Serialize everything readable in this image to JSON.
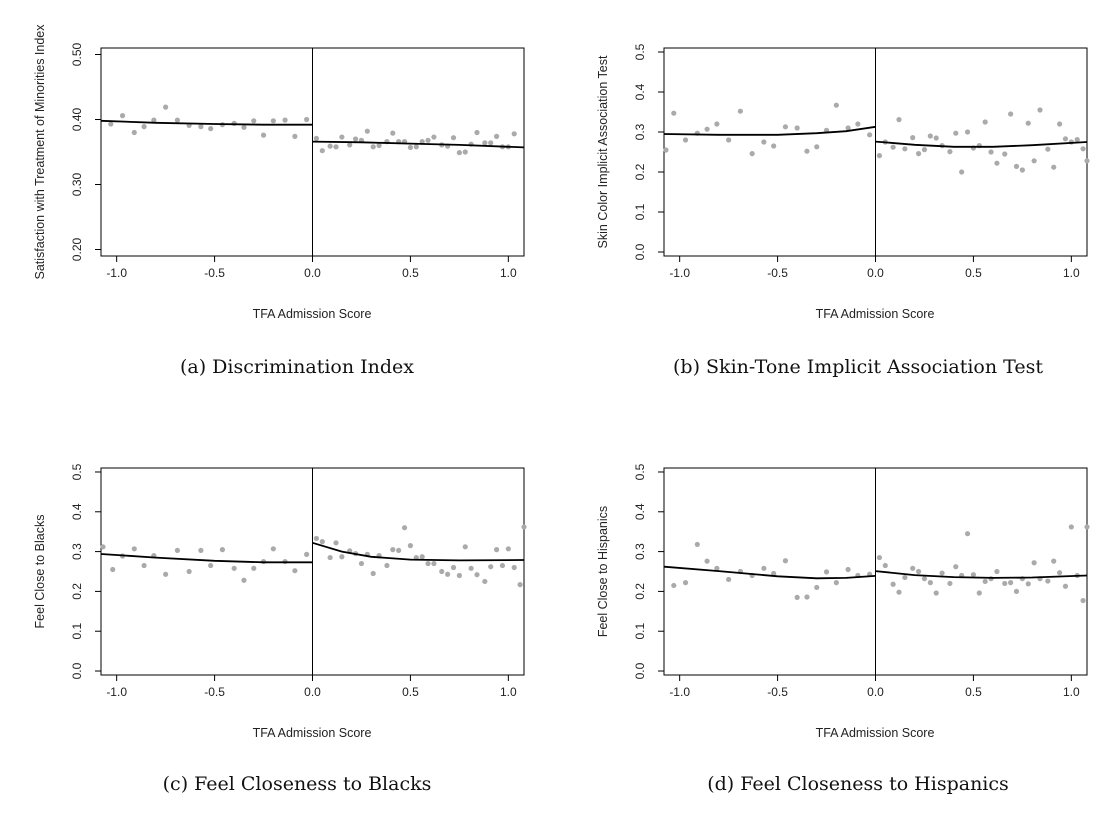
{
  "chart_data": [
    {
      "type": "scatter",
      "caption": "(a) Discrimination Index",
      "xlabel": "TFA Admission Score",
      "ylabel": "Satisfaction with Treatment of Minorities Index",
      "xlim": [
        -1.08,
        1.08
      ],
      "ylim": [
        0.19,
        0.51
      ],
      "xticks": [
        "-1.0",
        "-0.5",
        "0.0",
        "0.5",
        "1.0"
      ],
      "yticks": [
        "0.20",
        "0.30",
        "0.40",
        "0.50"
      ],
      "cutoff": 0.0,
      "points": [
        [
          -1.03,
          0.393
        ],
        [
          -0.97,
          0.406
        ],
        [
          -0.91,
          0.38
        ],
        [
          -0.86,
          0.389
        ],
        [
          -0.81,
          0.399
        ],
        [
          -0.75,
          0.419
        ],
        [
          -0.69,
          0.399
        ],
        [
          -0.63,
          0.391
        ],
        [
          -0.57,
          0.389
        ],
        [
          -0.52,
          0.386
        ],
        [
          -0.46,
          0.392
        ],
        [
          -0.4,
          0.394
        ],
        [
          -0.35,
          0.388
        ],
        [
          -0.3,
          0.398
        ],
        [
          -0.25,
          0.376
        ],
        [
          -0.2,
          0.398
        ],
        [
          -0.14,
          0.399
        ],
        [
          -0.09,
          0.374
        ],
        [
          -0.03,
          0.4
        ],
        [
          0.02,
          0.371
        ],
        [
          0.05,
          0.352
        ],
        [
          0.09,
          0.359
        ],
        [
          0.12,
          0.358
        ],
        [
          0.15,
          0.373
        ],
        [
          0.19,
          0.361
        ],
        [
          0.22,
          0.37
        ],
        [
          0.25,
          0.368
        ],
        [
          0.28,
          0.382
        ],
        [
          0.31,
          0.358
        ],
        [
          0.34,
          0.36
        ],
        [
          0.38,
          0.366
        ],
        [
          0.41,
          0.379
        ],
        [
          0.44,
          0.366
        ],
        [
          0.47,
          0.366
        ],
        [
          0.5,
          0.357
        ],
        [
          0.53,
          0.358
        ],
        [
          0.56,
          0.366
        ],
        [
          0.59,
          0.368
        ],
        [
          0.62,
          0.373
        ],
        [
          0.66,
          0.361
        ],
        [
          0.69,
          0.359
        ],
        [
          0.72,
          0.372
        ],
        [
          0.75,
          0.349
        ],
        [
          0.78,
          0.35
        ],
        [
          0.81,
          0.362
        ],
        [
          0.84,
          0.38
        ],
        [
          0.88,
          0.364
        ],
        [
          0.91,
          0.364
        ],
        [
          0.94,
          0.374
        ],
        [
          0.97,
          0.358
        ],
        [
          1.0,
          0.358
        ],
        [
          1.03,
          0.378
        ]
      ],
      "fit_left": [
        [
          -1.08,
          0.398
        ],
        [
          -0.8,
          0.395
        ],
        [
          -0.5,
          0.393
        ],
        [
          -0.25,
          0.392
        ],
        [
          0.0,
          0.392
        ]
      ],
      "fit_right": [
        [
          0.0,
          0.366
        ],
        [
          0.25,
          0.365
        ],
        [
          0.5,
          0.363
        ],
        [
          0.75,
          0.361
        ],
        [
          1.08,
          0.357
        ]
      ]
    },
    {
      "type": "scatter",
      "caption": "(b) Skin-Tone Implicit Association Test",
      "xlabel": "TFA Admission Score",
      "ylabel": "Skin Color Implicit Association Test",
      "xlim": [
        -1.08,
        1.08
      ],
      "ylim": [
        -0.01,
        0.51
      ],
      "xticks": [
        "-1.0",
        "-0.5",
        "0.0",
        "0.5",
        "1.0"
      ],
      "yticks": [
        "0.0",
        "0.1",
        "0.2",
        "0.3",
        "0.4",
        "0.5"
      ],
      "cutoff": 0.0,
      "points": [
        [
          -1.07,
          0.255
        ],
        [
          -1.03,
          0.347
        ],
        [
          -0.97,
          0.28
        ],
        [
          -0.91,
          0.297
        ],
        [
          -0.86,
          0.307
        ],
        [
          -0.81,
          0.32
        ],
        [
          -0.75,
          0.28
        ],
        [
          -0.69,
          0.352
        ],
        [
          -0.63,
          0.246
        ],
        [
          -0.57,
          0.275
        ],
        [
          -0.52,
          0.265
        ],
        [
          -0.46,
          0.313
        ],
        [
          -0.4,
          0.31
        ],
        [
          -0.35,
          0.252
        ],
        [
          -0.3,
          0.263
        ],
        [
          -0.25,
          0.304
        ],
        [
          -0.2,
          0.367
        ],
        [
          -0.14,
          0.31
        ],
        [
          -0.09,
          0.32
        ],
        [
          -0.03,
          0.293
        ],
        [
          0.02,
          0.241
        ],
        [
          0.05,
          0.275
        ],
        [
          0.09,
          0.262
        ],
        [
          0.12,
          0.331
        ],
        [
          0.15,
          0.258
        ],
        [
          0.19,
          0.286
        ],
        [
          0.22,
          0.246
        ],
        [
          0.25,
          0.256
        ],
        [
          0.28,
          0.29
        ],
        [
          0.31,
          0.285
        ],
        [
          0.34,
          0.266
        ],
        [
          0.38,
          0.251
        ],
        [
          0.41,
          0.297
        ],
        [
          0.44,
          0.2
        ],
        [
          0.47,
          0.3
        ],
        [
          0.5,
          0.26
        ],
        [
          0.53,
          0.266
        ],
        [
          0.56,
          0.325
        ],
        [
          0.59,
          0.25
        ],
        [
          0.62,
          0.222
        ],
        [
          0.66,
          0.245
        ],
        [
          0.69,
          0.345
        ],
        [
          0.72,
          0.214
        ],
        [
          0.75,
          0.205
        ],
        [
          0.78,
          0.322
        ],
        [
          0.81,
          0.228
        ],
        [
          0.84,
          0.355
        ],
        [
          0.88,
          0.257
        ],
        [
          0.91,
          0.212
        ],
        [
          0.94,
          0.32
        ],
        [
          0.97,
          0.283
        ],
        [
          1.0,
          0.275
        ],
        [
          1.03,
          0.281
        ],
        [
          1.06,
          0.258
        ],
        [
          1.08,
          0.228
        ]
      ],
      "fit_left": [
        [
          -1.08,
          0.295
        ],
        [
          -0.8,
          0.293
        ],
        [
          -0.5,
          0.293
        ],
        [
          -0.3,
          0.297
        ],
        [
          -0.15,
          0.302
        ],
        [
          0.0,
          0.313
        ]
      ],
      "fit_right": [
        [
          0.0,
          0.276
        ],
        [
          0.2,
          0.268
        ],
        [
          0.4,
          0.263
        ],
        [
          0.6,
          0.263
        ],
        [
          0.8,
          0.267
        ],
        [
          1.08,
          0.275
        ]
      ]
    },
    {
      "type": "scatter",
      "caption": "(c) Feel Closeness to Blacks",
      "xlabel": "TFA Admission Score",
      "ylabel": "Feel Close to Blacks",
      "xlim": [
        -1.08,
        1.08
      ],
      "ylim": [
        -0.01,
        0.51
      ],
      "xticks": [
        "-1.0",
        "-0.5",
        "0.0",
        "0.5",
        "1.0"
      ],
      "yticks": [
        "0.0",
        "0.1",
        "0.2",
        "0.3",
        "0.4",
        "0.5"
      ],
      "cutoff": 0.0,
      "points": [
        [
          -1.07,
          0.312
        ],
        [
          -1.02,
          0.255
        ],
        [
          -0.97,
          0.289
        ],
        [
          -0.91,
          0.307
        ],
        [
          -0.86,
          0.265
        ],
        [
          -0.81,
          0.29
        ],
        [
          -0.75,
          0.243
        ],
        [
          -0.69,
          0.303
        ],
        [
          -0.63,
          0.25
        ],
        [
          -0.57,
          0.303
        ],
        [
          -0.52,
          0.265
        ],
        [
          -0.46,
          0.305
        ],
        [
          -0.4,
          0.258
        ],
        [
          -0.35,
          0.228
        ],
        [
          -0.3,
          0.258
        ],
        [
          -0.25,
          0.275
        ],
        [
          -0.2,
          0.307
        ],
        [
          -0.14,
          0.275
        ],
        [
          -0.09,
          0.252
        ],
        [
          -0.03,
          0.293
        ],
        [
          0.02,
          0.333
        ],
        [
          0.05,
          0.325
        ],
        [
          0.09,
          0.285
        ],
        [
          0.12,
          0.322
        ],
        [
          0.15,
          0.287
        ],
        [
          0.19,
          0.302
        ],
        [
          0.22,
          0.295
        ],
        [
          0.25,
          0.27
        ],
        [
          0.28,
          0.293
        ],
        [
          0.31,
          0.245
        ],
        [
          0.34,
          0.29
        ],
        [
          0.38,
          0.265
        ],
        [
          0.41,
          0.305
        ],
        [
          0.44,
          0.303
        ],
        [
          0.47,
          0.36
        ],
        [
          0.5,
          0.315
        ],
        [
          0.53,
          0.285
        ],
        [
          0.56,
          0.287
        ],
        [
          0.59,
          0.27
        ],
        [
          0.62,
          0.27
        ],
        [
          0.66,
          0.25
        ],
        [
          0.69,
          0.243
        ],
        [
          0.72,
          0.26
        ],
        [
          0.75,
          0.24
        ],
        [
          0.78,
          0.312
        ],
        [
          0.81,
          0.258
        ],
        [
          0.84,
          0.242
        ],
        [
          0.88,
          0.225
        ],
        [
          0.91,
          0.262
        ],
        [
          0.94,
          0.305
        ],
        [
          0.97,
          0.265
        ],
        [
          1.0,
          0.307
        ],
        [
          1.03,
          0.26
        ],
        [
          1.06,
          0.217
        ],
        [
          1.08,
          0.362
        ]
      ],
      "fit_left": [
        [
          -1.08,
          0.294
        ],
        [
          -0.8,
          0.285
        ],
        [
          -0.5,
          0.277
        ],
        [
          -0.25,
          0.273
        ],
        [
          0.0,
          0.273
        ]
      ],
      "fit_right": [
        [
          0.0,
          0.322
        ],
        [
          0.15,
          0.3
        ],
        [
          0.3,
          0.287
        ],
        [
          0.5,
          0.28
        ],
        [
          0.75,
          0.278
        ],
        [
          1.08,
          0.279
        ]
      ]
    },
    {
      "type": "scatter",
      "caption": "(d) Feel Closeness to Hispanics",
      "xlabel": "TFA Admission Score",
      "ylabel": "Feel Close to Hispanics",
      "xlim": [
        -1.08,
        1.08
      ],
      "ylim": [
        -0.01,
        0.51
      ],
      "xticks": [
        "-1.0",
        "-0.5",
        "0.0",
        "0.5",
        "1.0"
      ],
      "yticks": [
        "0.0",
        "0.1",
        "0.2",
        "0.3",
        "0.4",
        "0.5"
      ],
      "cutoff": 0.0,
      "points": [
        [
          -1.03,
          0.215
        ],
        [
          -0.97,
          0.222
        ],
        [
          -0.91,
          0.318
        ],
        [
          -0.86,
          0.276
        ],
        [
          -0.81,
          0.258
        ],
        [
          -0.75,
          0.23
        ],
        [
          -0.69,
          0.25
        ],
        [
          -0.63,
          0.24
        ],
        [
          -0.57,
          0.258
        ],
        [
          -0.52,
          0.245
        ],
        [
          -0.46,
          0.277
        ],
        [
          -0.4,
          0.185
        ],
        [
          -0.35,
          0.186
        ],
        [
          -0.3,
          0.21
        ],
        [
          -0.25,
          0.249
        ],
        [
          -0.2,
          0.222
        ],
        [
          -0.14,
          0.255
        ],
        [
          -0.09,
          0.24
        ],
        [
          -0.03,
          0.243
        ],
        [
          0.02,
          0.285
        ],
        [
          0.05,
          0.265
        ],
        [
          0.09,
          0.218
        ],
        [
          0.12,
          0.198
        ],
        [
          0.15,
          0.235
        ],
        [
          0.19,
          0.258
        ],
        [
          0.22,
          0.25
        ],
        [
          0.25,
          0.232
        ],
        [
          0.28,
          0.222
        ],
        [
          0.31,
          0.196
        ],
        [
          0.34,
          0.246
        ],
        [
          0.38,
          0.22
        ],
        [
          0.41,
          0.262
        ],
        [
          0.44,
          0.24
        ],
        [
          0.47,
          0.345
        ],
        [
          0.5,
          0.242
        ],
        [
          0.53,
          0.196
        ],
        [
          0.56,
          0.225
        ],
        [
          0.59,
          0.232
        ],
        [
          0.62,
          0.25
        ],
        [
          0.66,
          0.22
        ],
        [
          0.69,
          0.222
        ],
        [
          0.72,
          0.2
        ],
        [
          0.75,
          0.232
        ],
        [
          0.78,
          0.219
        ],
        [
          0.81,
          0.272
        ],
        [
          0.84,
          0.232
        ],
        [
          0.88,
          0.226
        ],
        [
          0.91,
          0.276
        ],
        [
          0.94,
          0.247
        ],
        [
          0.97,
          0.213
        ],
        [
          1.0,
          0.362
        ],
        [
          1.03,
          0.24
        ],
        [
          1.06,
          0.177
        ],
        [
          1.08,
          0.362
        ]
      ],
      "fit_left": [
        [
          -1.08,
          0.262
        ],
        [
          -0.8,
          0.251
        ],
        [
          -0.5,
          0.238
        ],
        [
          -0.3,
          0.233
        ],
        [
          -0.15,
          0.234
        ],
        [
          0.0,
          0.239
        ]
      ],
      "fit_right": [
        [
          0.0,
          0.251
        ],
        [
          0.2,
          0.241
        ],
        [
          0.4,
          0.236
        ],
        [
          0.6,
          0.234
        ],
        [
          0.8,
          0.235
        ],
        [
          1.08,
          0.24
        ]
      ]
    }
  ]
}
